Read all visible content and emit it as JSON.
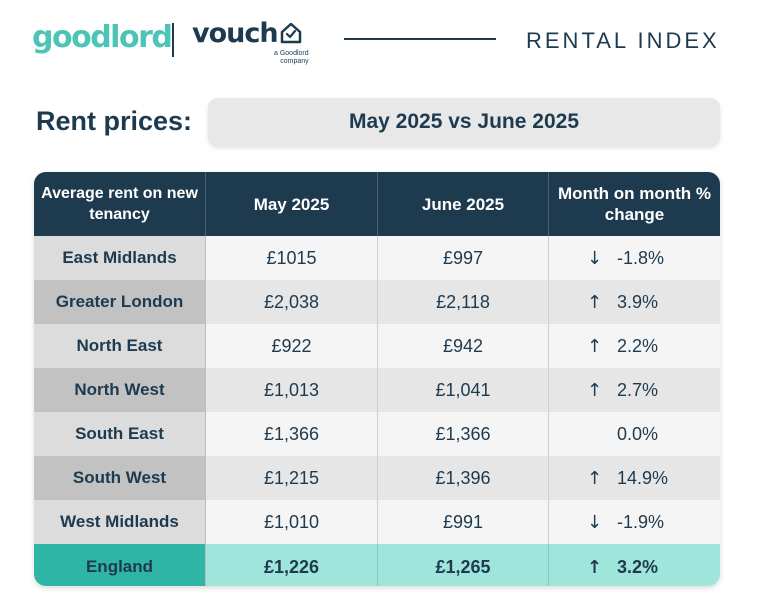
{
  "brand": {
    "goodlord": "goodlord",
    "vouch": "vouch",
    "vouch_sub_line1": "a Goodlord",
    "vouch_sub_line2": "company",
    "index_label": "RENTAL INDEX",
    "accent_color": "#4cc4b6",
    "navy_color": "#1e3a4f"
  },
  "title": {
    "label": "Rent prices:",
    "period": "May 2025 vs June 2025"
  },
  "table": {
    "headers": [
      "Average rent on new tenancy",
      "May 2025",
      "June 2025",
      "Month on month % change"
    ],
    "rows": [
      {
        "region": "East Midlands",
        "may": "£1015",
        "june": "£997",
        "arrow": "↓",
        "change": "-1.8%"
      },
      {
        "region": "Greater London",
        "may": "£2,038",
        "june": "£2,118",
        "arrow": "↑",
        "change": "3.9%"
      },
      {
        "region": "North East",
        "may": "£922",
        "june": "£942",
        "arrow": "↑",
        "change": "2.2%"
      },
      {
        "region": "North West",
        "may": "£1,013",
        "june": "£1,041",
        "arrow": "↑",
        "change": "2.7%"
      },
      {
        "region": "South East",
        "may": "£1,366",
        "june": "£1,366",
        "arrow": "",
        "change": "0.0%"
      },
      {
        "region": "South West",
        "may": "£1,215",
        "june": "£1,396",
        "arrow": "↑",
        "change": "14.9%"
      },
      {
        "region": "West Midlands",
        "may": "£1,010",
        "june": "£991",
        "arrow": "↓",
        "change": "-1.9%"
      }
    ],
    "total": {
      "region": "England",
      "may": "£1,226",
      "june": "£1,265",
      "arrow": "↑",
      "change": "3.2%"
    }
  }
}
